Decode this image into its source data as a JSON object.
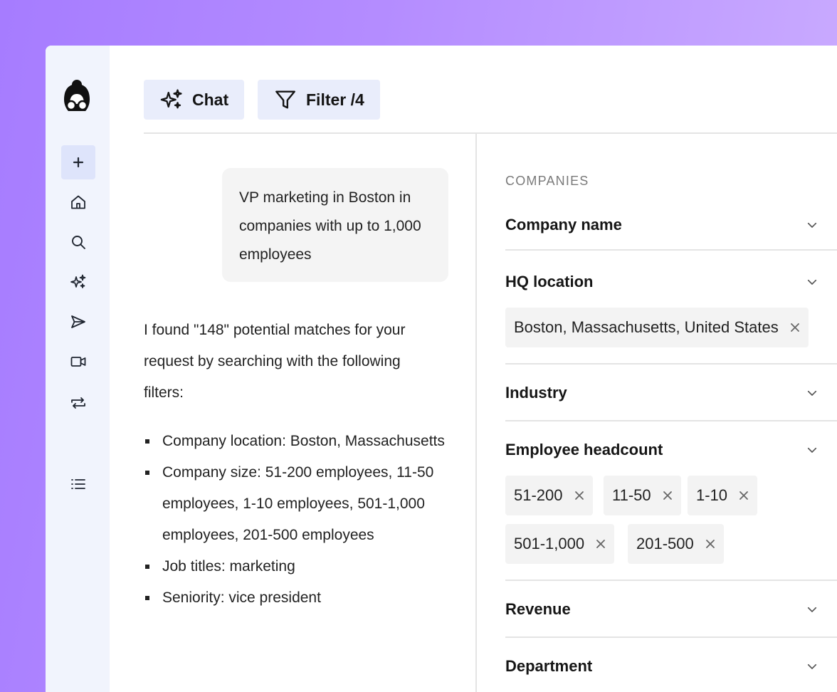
{
  "toolbar": {
    "chat_label": "Chat",
    "filter_label": "Filter /4"
  },
  "chat": {
    "user_message": "VP marketing in Boston in companies with up to 1,000 employees",
    "reply_text": "I found \"148\" potential matches for your request by searching with the following filters:",
    "bullets": [
      "Company location: Boston, Massachusetts",
      "Company size: 51-200 employees, 11-50 employees, 1-10 employees, 501-1,000 employees, 201-500 employees",
      "Job titles: marketing",
      "Seniority: vice president"
    ]
  },
  "filters": {
    "section_title": "COMPANIES",
    "items": [
      {
        "label": "Company name"
      },
      {
        "label": "HQ location",
        "chips": [
          "Boston, Massachusetts, United States"
        ]
      },
      {
        "label": "Industry"
      },
      {
        "label": "Employee headcount",
        "chips": [
          "51-200",
          "11-50",
          "1-10",
          "501-1,000",
          "201-500"
        ]
      },
      {
        "label": "Revenue"
      },
      {
        "label": "Department"
      }
    ]
  },
  "sidebar": {
    "icons": [
      "plus-icon",
      "home-icon",
      "search-icon",
      "sparkle-icon",
      "send-icon",
      "video-icon",
      "repeat-icon",
      "list-icon"
    ]
  },
  "colors": {
    "background_gradient_start": "#a67cff",
    "sidebar_bg": "#f1f4fd",
    "button_bg": "#e9edfb",
    "chip_bg": "#f3f3f3"
  }
}
